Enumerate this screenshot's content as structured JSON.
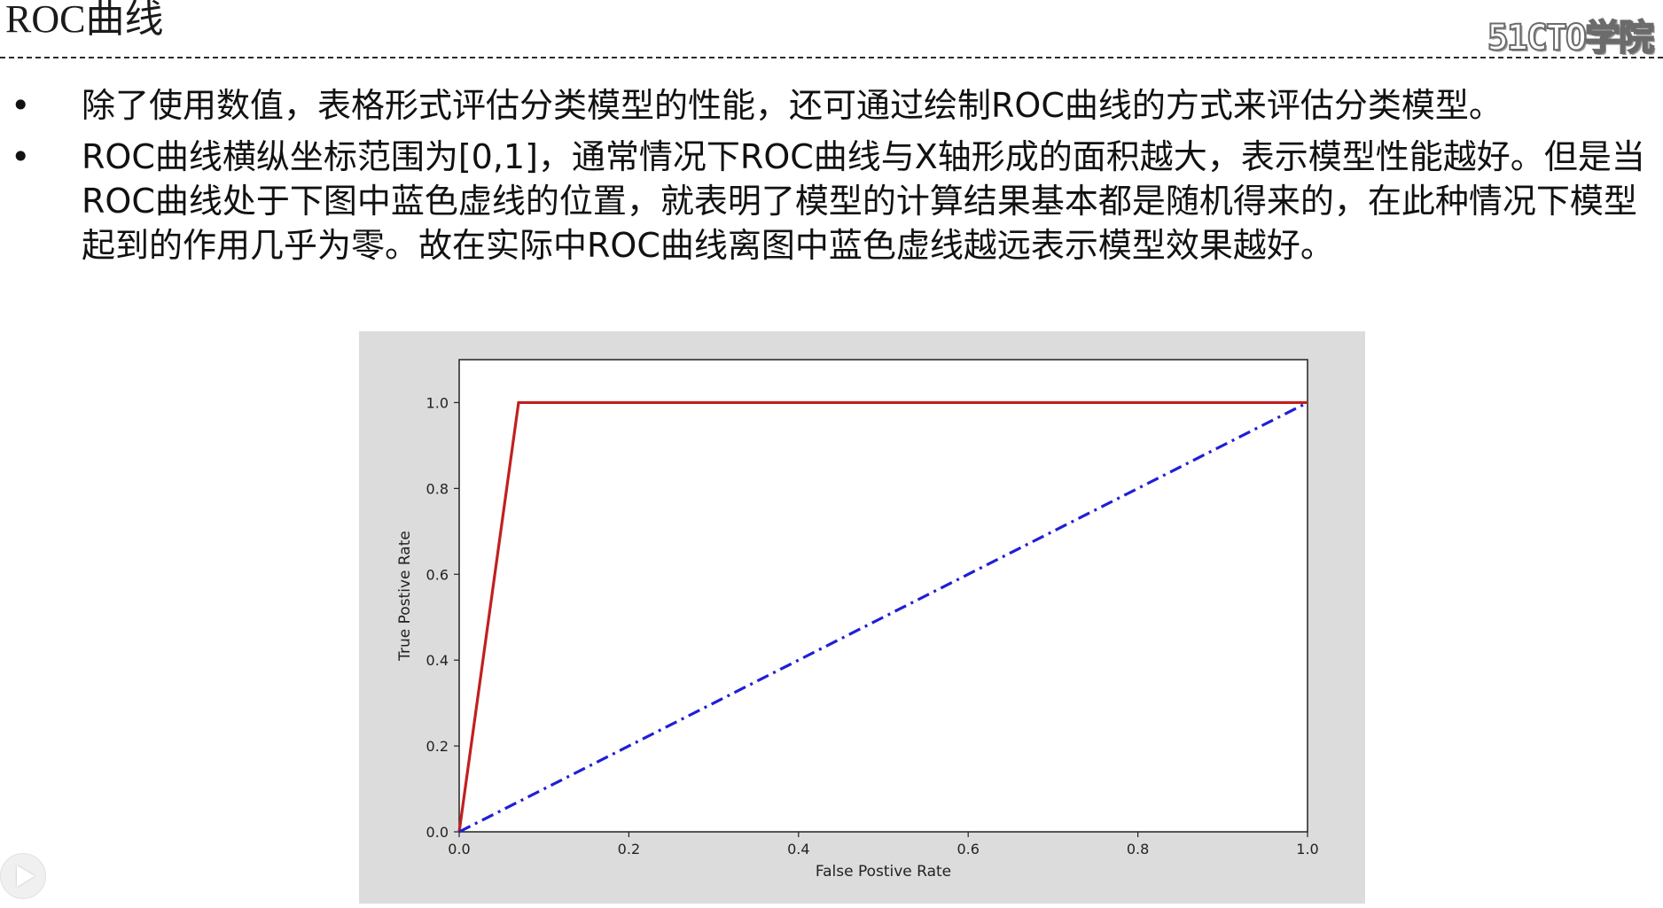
{
  "page": {
    "title": "ROC曲线",
    "brand": "51CTO学院"
  },
  "bullets": [
    {
      "marker": "•",
      "text": "除了使用数值，表格形式评估分类模型的性能，还可通过绘制ROC曲线的方式来评估分类模型。"
    },
    {
      "marker": "•",
      "text": "ROC曲线横纵坐标范围为[0,1]，通常情况下ROC曲线与X轴形成的面积越大，表示模型性能越好。但是当ROC曲线处于下图中蓝色虚线的位置，就表明了模型的计算结果基本都是随机得来的，在此种情况下模型起到的作用几乎为零。故在实际中ROC曲线离图中蓝色虚线越远表示模型效果越好。"
    }
  ],
  "chart_data": {
    "type": "line",
    "title": "",
    "xlabel": "False Postive Rate",
    "ylabel": "True Postive Rate",
    "xlim": [
      0.0,
      1.0
    ],
    "ylim": [
      0.0,
      1.1
    ],
    "xticks": [
      "0.0",
      "0.2",
      "0.4",
      "0.6",
      "0.8",
      "1.0"
    ],
    "yticks": [
      "0.0",
      "0.2",
      "0.4",
      "0.6",
      "0.8",
      "1.0"
    ],
    "grid": false,
    "legend": "none",
    "series": [
      {
        "x": [
          0.0,
          0.07,
          1.0
        ],
        "y": [
          0.0,
          1.0,
          1.0
        ],
        "color": "#c0201f",
        "style": "solid"
      },
      {
        "x": [
          0.0,
          1.0
        ],
        "y": [
          0.0,
          1.0
        ],
        "color": "#1f1fd6",
        "style": "dash-dot"
      }
    ]
  },
  "controls": {
    "play_icon": "play-icon"
  }
}
